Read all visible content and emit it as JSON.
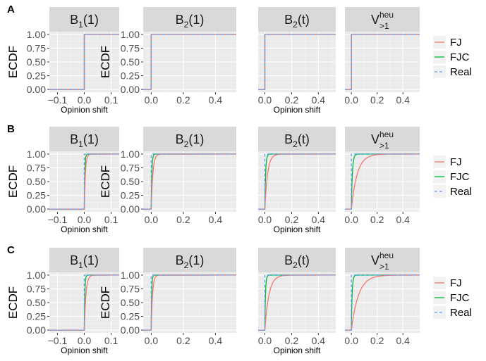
{
  "chart_data": {
    "type": "line",
    "row_labels": [
      "A",
      "B",
      "C"
    ],
    "panels": [
      {
        "main": "B",
        "sub": "1",
        "suffix": "(1)",
        "sup": ""
      },
      {
        "main": "B",
        "sub": "2",
        "suffix": "(1)",
        "sup": ""
      },
      {
        "main": "B",
        "sub": "2",
        "suffix": "(t)",
        "sup": ""
      },
      {
        "main": "V",
        "sub": ">1",
        "suffix": "",
        "sup": "heu"
      }
    ],
    "ylabel": "ECDF",
    "xlabel": "Opinion shift",
    "yticks": [
      "0.00",
      "0.25",
      "0.50",
      "0.75",
      "1.00"
    ],
    "panel1_xticks": [
      "−0.1",
      "0.0",
      "0.1"
    ],
    "panel1_xlim": [
      -0.13,
      0.13
    ],
    "other_xticks": [
      "0.0",
      "0.2",
      "0.4"
    ],
    "other_xlim": [
      -0.05,
      0.53
    ],
    "ylim": [
      -0.05,
      1.05
    ],
    "legend": {
      "position": "right",
      "entries": [
        {
          "name": "FJ",
          "color": "#f8766d",
          "dash": false
        },
        {
          "name": "FJC",
          "color": "#00ba38",
          "dash": false
        },
        {
          "name": "Real",
          "color": "#619cff",
          "dash": true
        }
      ]
    },
    "series_scales": {
      "A": {
        "FJ": [
          0,
          0,
          0,
          0
        ],
        "FJC": [
          0,
          0,
          0,
          0
        ],
        "Real": [
          0,
          0,
          0,
          0
        ]
      },
      "B": {
        "FJ": [
          0.004,
          0.01,
          0.02,
          0.045
        ],
        "FJC": [
          0.002,
          0.004,
          0.006,
          0.008
        ],
        "Real": [
          0,
          0,
          0,
          0
        ]
      },
      "C": {
        "FJ": [
          0.006,
          0.008,
          0.03,
          0.055
        ],
        "FJC": [
          0.002,
          0.003,
          0.005,
          0.006
        ],
        "Real": [
          0,
          0,
          0,
          0
        ]
      }
    }
  }
}
